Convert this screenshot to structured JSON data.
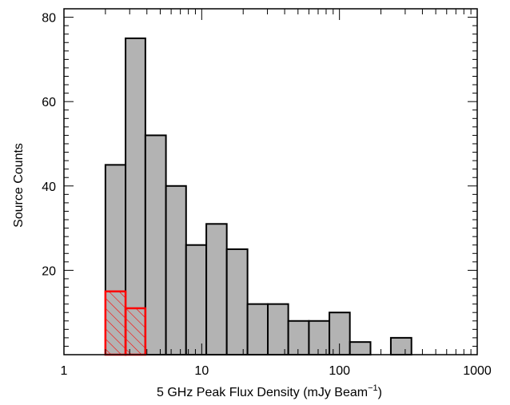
{
  "chart_data": {
    "type": "bar",
    "title": "",
    "xlabel_main": "5 GHz Peak Flux Density (mJy Beam",
    "xlabel_sup": "−1",
    "xlabel_close": ")",
    "ylabel": "Source Counts",
    "x_scale": "log",
    "xlim": [
      1,
      1000
    ],
    "ylim": [
      0,
      82
    ],
    "x_tick_labels": [
      {
        "value": 1,
        "label": "1"
      },
      {
        "value": 10,
        "label": "10"
      },
      {
        "value": 100,
        "label": "100"
      },
      {
        "value": 1000,
        "label": "1000"
      }
    ],
    "y_tick_labels": [
      {
        "value": 20,
        "label": "20"
      },
      {
        "value": 40,
        "label": "40"
      },
      {
        "value": 60,
        "label": "60"
      },
      {
        "value": 80,
        "label": "80"
      }
    ],
    "grid": false,
    "legend": "none",
    "series": [
      {
        "style": "gray-filled",
        "fill": "#b3b3b3",
        "edge": "#000000",
        "bins": [
          {
            "x0": 2.0,
            "x1": 2.8,
            "value": 45
          },
          {
            "x0": 2.8,
            "x1": 3.9,
            "value": 75
          },
          {
            "x0": 3.9,
            "x1": 5.5,
            "value": 52
          },
          {
            "x0": 5.5,
            "x1": 7.7,
            "value": 40
          },
          {
            "x0": 7.7,
            "x1": 10.8,
            "value": 26
          },
          {
            "x0": 10.8,
            "x1": 15.2,
            "value": 31
          },
          {
            "x0": 15.2,
            "x1": 21.5,
            "value": 25
          },
          {
            "x0": 21.5,
            "x1": 30.2,
            "value": 12
          },
          {
            "x0": 30.2,
            "x1": 42.5,
            "value": 12
          },
          {
            "x0": 42.5,
            "x1": 60,
            "value": 8
          },
          {
            "x0": 60,
            "x1": 84.5,
            "value": 8
          },
          {
            "x0": 84.5,
            "x1": 119,
            "value": 10
          },
          {
            "x0": 119,
            "x1": 168,
            "value": 3
          },
          {
            "x0": 168,
            "x1": 236,
            "value": 0
          },
          {
            "x0": 236,
            "x1": 333,
            "value": 4
          }
        ]
      },
      {
        "style": "red-hatched",
        "edge": "#ff0000",
        "bins": [
          {
            "x0": 2.0,
            "x1": 2.8,
            "value": 15
          },
          {
            "x0": 2.8,
            "x1": 3.9,
            "value": 11
          }
        ]
      }
    ]
  }
}
